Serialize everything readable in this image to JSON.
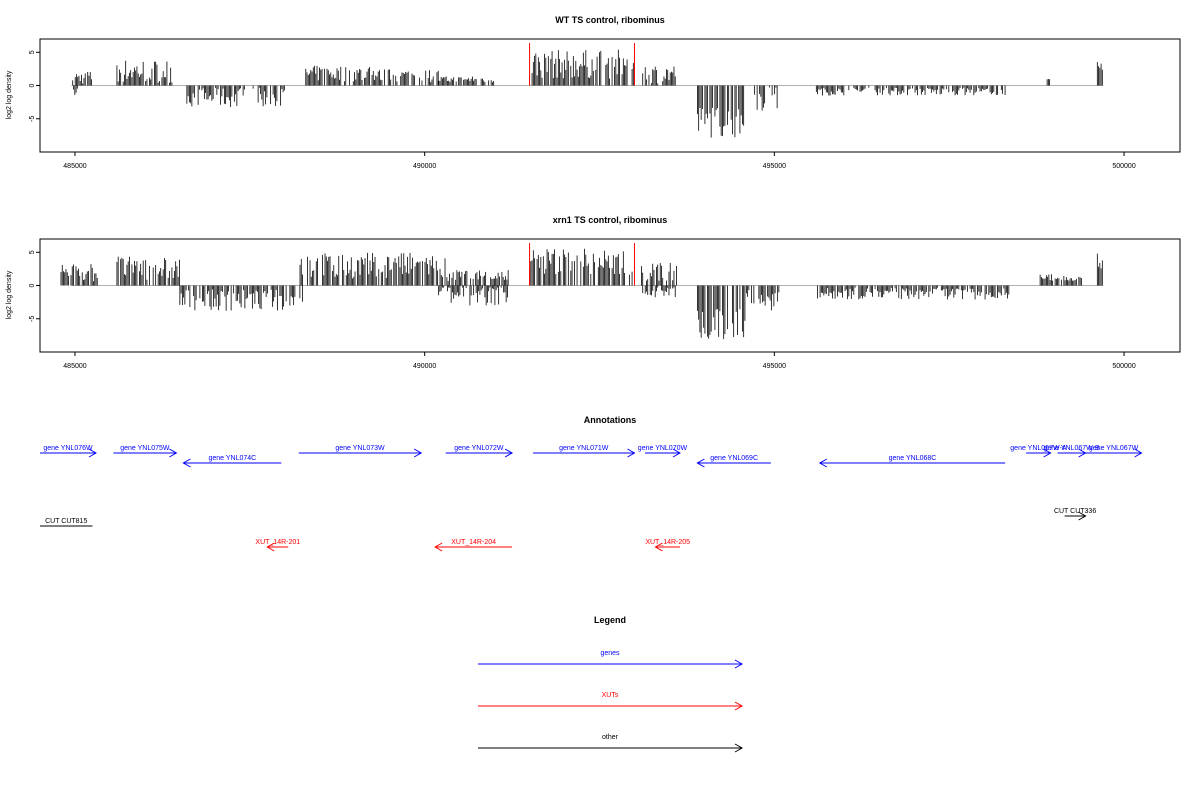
{
  "chart_data": [
    {
      "type": "bar",
      "title": "WT TS control, ribominus",
      "ylabel": "log2 log density",
      "xlim": [
        484500,
        500800
      ],
      "ylim": [
        -10,
        7
      ],
      "x_ticks": [
        485000,
        490000,
        495000,
        500000
      ],
      "y_ticks": [
        -5,
        0,
        5
      ],
      "grid": false,
      "bar_color": "#000000",
      "marker_color": "#ff0000",
      "red_markers": [
        491500,
        493000
      ],
      "segments": [
        {
          "from": 484950,
          "to": 485250,
          "mean": 1.2,
          "amp": 1.0,
          "neg": false
        },
        {
          "from": 484980,
          "to": 485050,
          "mean": -1.0,
          "amp": 0.6,
          "neg": true
        },
        {
          "from": 485600,
          "to": 486400,
          "mean": 2.2,
          "amp": 1.8,
          "neg": false
        },
        {
          "from": 486600,
          "to": 488000,
          "mean": -1.8,
          "amp": 1.5,
          "neg": true
        },
        {
          "from": 488300,
          "to": 489300,
          "mean": 1.8,
          "amp": 1.2,
          "neg": false
        },
        {
          "from": 489300,
          "to": 490200,
          "mean": 1.5,
          "amp": 1.0,
          "neg": false
        },
        {
          "from": 490200,
          "to": 491000,
          "mean": 0.9,
          "amp": 0.5,
          "neg": false
        },
        {
          "from": 491500,
          "to": 493000,
          "mean": 3.2,
          "amp": 2.2,
          "neg": false
        },
        {
          "from": 493100,
          "to": 493600,
          "mean": 1.8,
          "amp": 1.5,
          "neg": false
        },
        {
          "from": 493900,
          "to": 494600,
          "mean": -5.5,
          "amp": 2.5,
          "neg": true
        },
        {
          "from": 494700,
          "to": 495050,
          "mean": -2.0,
          "amp": 2.0,
          "neg": true
        },
        {
          "from": 495600,
          "to": 498300,
          "mean": -0.9,
          "amp": 0.6,
          "neg": true
        },
        {
          "from": 498900,
          "to": 498950,
          "mean": 0.8,
          "amp": 0.2,
          "neg": false
        },
        {
          "from": 499600,
          "to": 499700,
          "mean": 3.5,
          "amp": 1.2,
          "neg": false
        }
      ]
    },
    {
      "type": "bar",
      "title": "xrn1 TS control, ribominus",
      "ylabel": "log2 log density",
      "xlim": [
        484500,
        500800
      ],
      "ylim": [
        -10,
        7
      ],
      "x_ticks": [
        485000,
        490000,
        495000,
        500000
      ],
      "y_ticks": [
        -5,
        0,
        5
      ],
      "grid": false,
      "bar_color": "#000000",
      "marker_color": "#ff0000",
      "red_markers": [
        491500,
        493000
      ],
      "segments": [
        {
          "from": 484800,
          "to": 485350,
          "mean": 2.0,
          "amp": 1.5,
          "neg": false
        },
        {
          "from": 485600,
          "to": 486500,
          "mean": 2.6,
          "amp": 1.8,
          "neg": false
        },
        {
          "from": 486500,
          "to": 488300,
          "mean": -2.2,
          "amp": 1.6,
          "neg": true
        },
        {
          "from": 488200,
          "to": 490300,
          "mean": 3.0,
          "amp": 2.0,
          "neg": false
        },
        {
          "from": 490200,
          "to": 491200,
          "mean": -1.5,
          "amp": 1.5,
          "neg": true
        },
        {
          "from": 490300,
          "to": 491200,
          "mean": 1.5,
          "amp": 1.0,
          "neg": false
        },
        {
          "from": 491500,
          "to": 493000,
          "mean": 3.6,
          "amp": 2.2,
          "neg": false
        },
        {
          "from": 493100,
          "to": 493650,
          "mean": 2.0,
          "amp": 1.5,
          "neg": false
        },
        {
          "from": 493100,
          "to": 493600,
          "mean": -1.0,
          "amp": 0.8,
          "neg": true
        },
        {
          "from": 493900,
          "to": 494600,
          "mean": -6.0,
          "amp": 2.5,
          "neg": true
        },
        {
          "from": 494600,
          "to": 495100,
          "mean": -2.0,
          "amp": 1.8,
          "neg": true
        },
        {
          "from": 495600,
          "to": 498400,
          "mean": -1.2,
          "amp": 0.9,
          "neg": true
        },
        {
          "from": 498800,
          "to": 499400,
          "mean": 1.2,
          "amp": 0.5,
          "neg": false
        },
        {
          "from": 499600,
          "to": 499700,
          "mean": 3.6,
          "amp": 1.2,
          "neg": false
        }
      ]
    }
  ],
  "annotations": {
    "title": "Annotations",
    "genes": [
      {
        "label": "gene YNL076W",
        "start": 484500,
        "end": 485300,
        "strand": "+",
        "row": 0
      },
      {
        "label": "gene YNL075W",
        "start": 485550,
        "end": 486450,
        "strand": "+",
        "row": 0
      },
      {
        "label": "gene YNL074C",
        "start": 486550,
        "end": 487950,
        "strand": "-",
        "row": 1
      },
      {
        "label": "gene YNL073W",
        "start": 488200,
        "end": 489950,
        "strand": "+",
        "row": 0
      },
      {
        "label": "gene YNL072W",
        "start": 490300,
        "end": 491250,
        "strand": "+",
        "row": 0
      },
      {
        "label": "gene YNL071W",
        "start": 491550,
        "end": 493000,
        "strand": "+",
        "row": 0
      },
      {
        "label": "gene YNL070W",
        "start": 493150,
        "end": 493650,
        "strand": "+",
        "row": 0
      },
      {
        "label": "gene YNL069C",
        "start": 493900,
        "end": 494950,
        "strand": "-",
        "row": 1
      },
      {
        "label": "gene YNL068C",
        "start": 495650,
        "end": 498300,
        "strand": "-",
        "row": 1
      },
      {
        "label": "gene YNL067W-A",
        "start": 498600,
        "end": 498950,
        "strand": "+",
        "row": 0
      },
      {
        "label": "gene YNL067W-B",
        "start": 499050,
        "end": 499450,
        "strand": "+",
        "row": 0
      },
      {
        "label": "gene YNL067W",
        "start": 499450,
        "end": 500250,
        "strand": "+",
        "row": 0
      }
    ],
    "cuts": [
      {
        "label": "CUT CUT815",
        "start": 484500,
        "end": 485250,
        "strand": "none",
        "row": 0
      },
      {
        "label": "CUT CUT336",
        "start": 499150,
        "end": 499450,
        "strand": "+",
        "row": 0
      }
    ],
    "xuts": [
      {
        "label": "XUT_14R-201",
        "start": 487750,
        "end": 488050,
        "strand": "-",
        "row": 0
      },
      {
        "label": "XUT_14R-204",
        "start": 490150,
        "end": 491250,
        "strand": "-",
        "row": 0
      },
      {
        "label": "XUT_14R-205",
        "start": 493300,
        "end": 493650,
        "strand": "-",
        "row": 0
      }
    ]
  },
  "legend": {
    "title": "Legend",
    "items": [
      {
        "label": "genes",
        "color": "#0000ff"
      },
      {
        "label": "XUTs",
        "color": "#ff0000"
      },
      {
        "label": "other",
        "color": "#000000"
      }
    ]
  },
  "colors": {
    "genes": "#0000ff",
    "xuts": "#ff0000",
    "cuts": "#000000",
    "axis": "#000000",
    "baseline": "#b0b0b0"
  }
}
